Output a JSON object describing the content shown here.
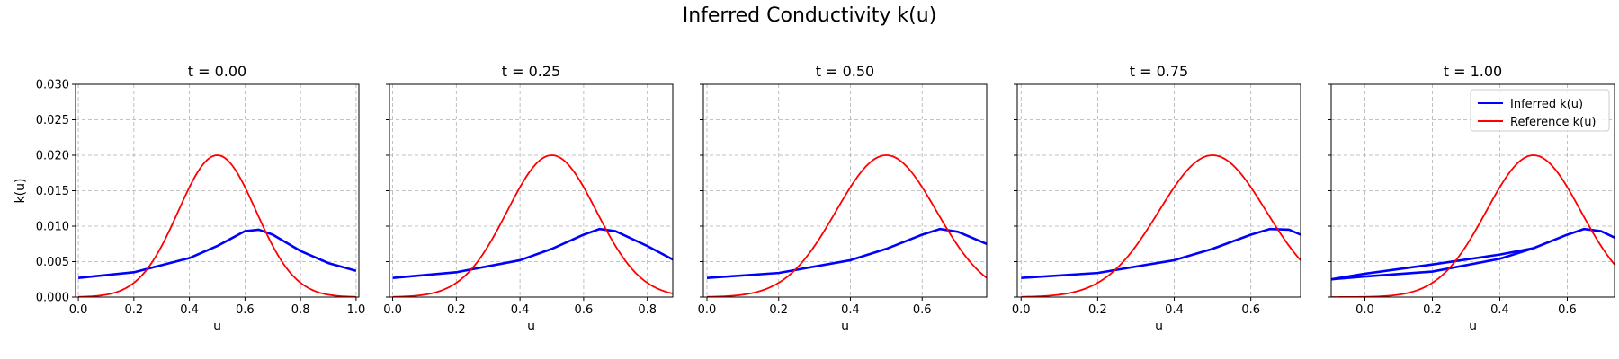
{
  "figure_title": "Inferred Conductivity k(u)",
  "colors": {
    "inferred": "#0000ff",
    "reference": "#ff0000",
    "grid": "#b0b0b0"
  },
  "legend": {
    "placement": "top-right",
    "inferred_label": "Inferred k(u)",
    "reference_label": "Reference k(u)"
  },
  "chart_data": [
    {
      "type": "line",
      "title": "t = 0.00",
      "xlabel": "u",
      "ylabel": "k(u)",
      "xlim": [
        -0.01,
        1.01
      ],
      "ylim": [
        0,
        0.03
      ],
      "xticks": [
        "0.0",
        "0.2",
        "0.4",
        "0.6",
        "0.8",
        "1.0"
      ],
      "yticks": [
        "0.000",
        "0.005",
        "0.010",
        "0.015",
        "0.020",
        "0.025",
        "0.030"
      ],
      "grid": true,
      "series": [
        {
          "name": "Inferred k(u)",
          "x": [
            0.0,
            0.2,
            0.4,
            0.5,
            0.6,
            0.65,
            0.7,
            0.8,
            0.9,
            1.0
          ],
          "y": [
            0.0027,
            0.0035,
            0.0055,
            0.0072,
            0.0093,
            0.0095,
            0.0088,
            0.0065,
            0.0048,
            0.0037
          ]
        },
        {
          "name": "Reference k(u)",
          "gaussian": {
            "amplitude": 0.02,
            "center": 0.5,
            "sigma": 0.14,
            "xmin": 0.0,
            "xmax": 1.0
          }
        }
      ]
    },
    {
      "type": "line",
      "title": "t = 0.25",
      "xlabel": "u",
      "ylabel": "",
      "xlim": [
        -0.01,
        0.88
      ],
      "ylim": [
        0,
        0.03
      ],
      "xticks": [
        "0.0",
        "0.2",
        "0.4",
        "0.6",
        "0.8"
      ],
      "yticks": [],
      "grid": true,
      "series": [
        {
          "name": "Inferred k(u)",
          "x": [
            0.0,
            0.2,
            0.4,
            0.5,
            0.6,
            0.65,
            0.7,
            0.8,
            0.88
          ],
          "y": [
            0.0027,
            0.0035,
            0.0052,
            0.0068,
            0.0088,
            0.0096,
            0.0093,
            0.0072,
            0.0053
          ]
        },
        {
          "name": "Reference k(u)",
          "gaussian": {
            "amplitude": 0.02,
            "center": 0.5,
            "sigma": 0.14,
            "xmin": 0.0,
            "xmax": 0.88
          }
        }
      ]
    },
    {
      "type": "line",
      "title": "t = 0.50",
      "xlabel": "u",
      "ylabel": "",
      "xlim": [
        -0.01,
        0.78
      ],
      "ylim": [
        0,
        0.03
      ],
      "xticks": [
        "0.0",
        "0.2",
        "0.4",
        "0.6"
      ],
      "yticks": [],
      "grid": true,
      "series": [
        {
          "name": "Inferred k(u)",
          "x": [
            0.0,
            0.2,
            0.4,
            0.5,
            0.6,
            0.65,
            0.7,
            0.78
          ],
          "y": [
            0.0027,
            0.0034,
            0.0052,
            0.0068,
            0.0088,
            0.0096,
            0.0092,
            0.0075
          ]
        },
        {
          "name": "Reference k(u)",
          "gaussian": {
            "amplitude": 0.02,
            "center": 0.5,
            "sigma": 0.14,
            "xmin": 0.0,
            "xmax": 0.78
          }
        }
      ]
    },
    {
      "type": "line",
      "title": "t = 0.75",
      "xlabel": "u",
      "ylabel": "",
      "xlim": [
        -0.01,
        0.73
      ],
      "ylim": [
        0,
        0.03
      ],
      "xticks": [
        "0.0",
        "0.2",
        "0.4",
        "0.6"
      ],
      "yticks": [],
      "grid": true,
      "series": [
        {
          "name": "Inferred k(u)",
          "x": [
            0.0,
            0.2,
            0.4,
            0.5,
            0.6,
            0.65,
            0.7,
            0.73
          ],
          "y": [
            0.0027,
            0.0034,
            0.0052,
            0.0068,
            0.0088,
            0.0096,
            0.0095,
            0.0088
          ]
        },
        {
          "name": "Reference k(u)",
          "gaussian": {
            "amplitude": 0.02,
            "center": 0.5,
            "sigma": 0.14,
            "xmin": 0.0,
            "xmax": 0.73
          }
        }
      ]
    },
    {
      "type": "line",
      "title": "t = 1.00",
      "xlabel": "u",
      "ylabel": "",
      "xlim": [
        -0.1,
        0.74
      ],
      "ylim": [
        0,
        0.03
      ],
      "xticks": [
        "0.0",
        "0.2",
        "0.4",
        "0.6"
      ],
      "yticks": [],
      "grid": true,
      "series": [
        {
          "name": "Inferred k(u)",
          "x": [
            -0.1,
            0.0,
            0.2,
            0.4,
            0.5,
            0.6,
            0.65,
            0.7,
            0.74
          ],
          "y": [
            0.0025,
            0.0029,
            0.0036,
            0.0054,
            0.0069,
            0.0088,
            0.0096,
            0.0093,
            0.0084
          ]
        },
        {
          "name": "Inferred k(u)",
          "x": [
            -0.1,
            0.0,
            0.2,
            0.4,
            0.5
          ],
          "y": [
            0.0025,
            0.0033,
            0.0046,
            0.006,
            0.0069
          ]
        },
        {
          "name": "Reference k(u)",
          "gaussian": {
            "amplitude": 0.02,
            "center": 0.5,
            "sigma": 0.14,
            "xmin": -0.1,
            "xmax": 0.74
          }
        }
      ]
    }
  ]
}
